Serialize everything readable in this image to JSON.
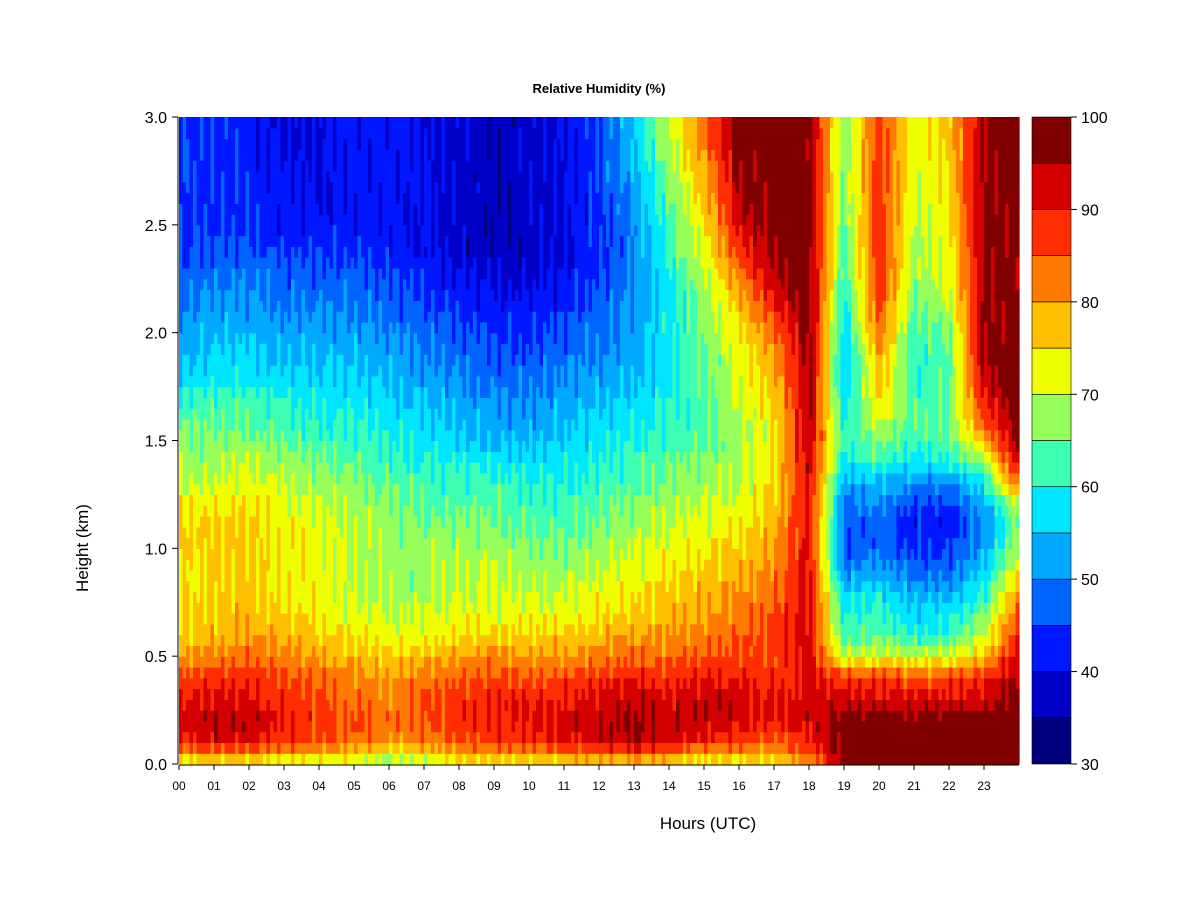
{
  "chart_data": {
    "type": "heatmap",
    "title": "Relative Humidity (%)",
    "xlabel": "Hours (UTC)",
    "ylabel": "Height (km)",
    "x_ticks": [
      "00",
      "01",
      "02",
      "03",
      "04",
      "05",
      "06",
      "07",
      "08",
      "09",
      "10",
      "11",
      "12",
      "13",
      "14",
      "15",
      "16",
      "17",
      "18",
      "19",
      "20",
      "21",
      "22",
      "23"
    ],
    "xlim": [
      0,
      24
    ],
    "y_ticks": [
      "0.0",
      "0.5",
      "1.0",
      "1.5",
      "2.0",
      "2.5",
      "3.0"
    ],
    "y_tick_values": [
      0,
      0.5,
      1.0,
      1.5,
      2.0,
      2.5,
      3.0
    ],
    "ylim": [
      0,
      3.0
    ],
    "colorbar": {
      "levels": [
        30,
        35,
        40,
        45,
        50,
        55,
        60,
        65,
        70,
        75,
        80,
        85,
        90,
        95,
        100
      ],
      "tick_labels": [
        "30",
        "40",
        "50",
        "60",
        "70",
        "80",
        "90",
        "100"
      ],
      "tick_values": [
        30,
        40,
        50,
        60,
        70,
        80,
        90,
        100
      ],
      "colors": [
        "#00007f",
        "#0000c8",
        "#0018ff",
        "#0064ff",
        "#00a8ff",
        "#00e6ff",
        "#3cffb4",
        "#96ff5a",
        "#f0ff00",
        "#ffbe00",
        "#ff7a00",
        "#ff2e00",
        "#d40000",
        "#800000"
      ]
    },
    "heights_km": [
      0.0,
      0.1,
      0.2,
      0.3,
      0.4,
      0.5,
      0.6,
      0.7,
      0.8,
      0.9,
      1.0,
      1.1,
      1.2,
      1.3,
      1.4,
      1.5,
      1.6,
      1.7,
      1.8,
      1.9,
      2.0,
      2.1,
      2.2,
      2.3,
      2.4,
      2.5,
      2.6,
      2.7,
      2.8,
      2.9,
      3.0
    ],
    "hours_utc": [
      0,
      1,
      2,
      3,
      4,
      5,
      6,
      7,
      8,
      9,
      10,
      11,
      12,
      13,
      14,
      15,
      16,
      17,
      18,
      19,
      20,
      21,
      22,
      23,
      24
    ],
    "rh_percent_by_height": [
      [
        70,
        72,
        72,
        70,
        70,
        68,
        66,
        68,
        72,
        72,
        72,
        73,
        75,
        75,
        72,
        70,
        72,
        74,
        78,
        98,
        98,
        98,
        98,
        98,
        98
      ],
      [
        90,
        92,
        92,
        88,
        86,
        84,
        80,
        82,
        86,
        88,
        88,
        90,
        92,
        94,
        92,
        88,
        86,
        84,
        90,
        98,
        98,
        98,
        98,
        98,
        98
      ],
      [
        92,
        94,
        94,
        90,
        88,
        86,
        84,
        86,
        88,
        90,
        90,
        92,
        94,
        96,
        94,
        94,
        92,
        90,
        92,
        99,
        99,
        99,
        99,
        99,
        99
      ],
      [
        90,
        92,
        92,
        88,
        86,
        84,
        82,
        86,
        88,
        90,
        90,
        90,
        92,
        94,
        92,
        94,
        92,
        90,
        92,
        92,
        92,
        92,
        92,
        92,
        98
      ],
      [
        86,
        88,
        88,
        86,
        84,
        82,
        80,
        82,
        84,
        86,
        86,
        86,
        88,
        90,
        88,
        90,
        90,
        88,
        92,
        88,
        88,
        86,
        86,
        88,
        96
      ],
      [
        80,
        82,
        84,
        82,
        80,
        78,
        76,
        78,
        80,
        82,
        80,
        80,
        82,
        84,
        84,
        86,
        86,
        86,
        92,
        70,
        72,
        70,
        72,
        76,
        94
      ],
      [
        76,
        78,
        80,
        78,
        76,
        74,
        72,
        72,
        74,
        76,
        76,
        76,
        78,
        80,
        80,
        82,
        84,
        86,
        92,
        62,
        64,
        60,
        62,
        70,
        88
      ],
      [
        74,
        76,
        78,
        76,
        74,
        72,
        70,
        70,
        72,
        72,
        72,
        72,
        74,
        76,
        78,
        80,
        82,
        86,
        92,
        60,
        62,
        56,
        58,
        66,
        84
      ],
      [
        74,
        76,
        76,
        74,
        72,
        70,
        68,
        68,
        70,
        70,
        70,
        70,
        72,
        74,
        76,
        78,
        80,
        84,
        92,
        56,
        58,
        52,
        52,
        60,
        80
      ],
      [
        74,
        76,
        76,
        74,
        72,
        70,
        68,
        68,
        70,
        70,
        68,
        68,
        70,
        72,
        74,
        76,
        78,
        82,
        92,
        50,
        52,
        48,
        48,
        56,
        74
      ],
      [
        76,
        76,
        76,
        74,
        72,
        70,
        68,
        68,
        68,
        68,
        66,
        66,
        68,
        70,
        72,
        74,
        76,
        80,
        92,
        46,
        48,
        44,
        44,
        52,
        70
      ],
      [
        76,
        76,
        76,
        74,
        72,
        70,
        68,
        66,
        66,
        66,
        64,
        64,
        66,
        68,
        70,
        72,
        74,
        78,
        92,
        46,
        48,
        42,
        42,
        50,
        68
      ],
      [
        74,
        74,
        74,
        72,
        70,
        68,
        66,
        64,
        64,
        64,
        62,
        62,
        64,
        66,
        68,
        70,
        72,
        76,
        92,
        48,
        50,
        44,
        44,
        52,
        70
      ],
      [
        70,
        70,
        72,
        70,
        68,
        66,
        64,
        62,
        62,
        62,
        60,
        60,
        62,
        64,
        66,
        68,
        70,
        76,
        92,
        52,
        54,
        50,
        50,
        58,
        84
      ],
      [
        68,
        68,
        70,
        68,
        66,
        64,
        62,
        60,
        60,
        58,
        58,
        58,
        60,
        62,
        64,
        66,
        68,
        74,
        94,
        58,
        62,
        58,
        60,
        68,
        94
      ],
      [
        66,
        66,
        66,
        64,
        62,
        62,
        60,
        58,
        56,
        54,
        54,
        56,
        58,
        60,
        62,
        64,
        68,
        74,
        94,
        62,
        66,
        62,
        64,
        78,
        98
      ],
      [
        64,
        64,
        64,
        62,
        60,
        60,
        58,
        56,
        54,
        52,
        52,
        54,
        56,
        58,
        60,
        64,
        68,
        74,
        95,
        60,
        72,
        64,
        66,
        86,
        98
      ],
      [
        60,
        62,
        62,
        60,
        58,
        58,
        56,
        54,
        52,
        50,
        50,
        52,
        54,
        56,
        60,
        64,
        70,
        76,
        96,
        56,
        76,
        62,
        66,
        90,
        98
      ],
      [
        56,
        58,
        58,
        56,
        56,
        56,
        54,
        52,
        50,
        48,
        48,
        50,
        52,
        54,
        58,
        64,
        70,
        78,
        96,
        54,
        78,
        60,
        64,
        94,
        98
      ],
      [
        54,
        56,
        56,
        54,
        54,
        54,
        52,
        50,
        48,
        46,
        46,
        48,
        50,
        52,
        58,
        64,
        72,
        80,
        97,
        54,
        80,
        60,
        64,
        96,
        98
      ],
      [
        52,
        54,
        54,
        52,
        52,
        52,
        50,
        48,
        46,
        44,
        44,
        46,
        48,
        52,
        58,
        66,
        74,
        84,
        97,
        56,
        84,
        62,
        66,
        96,
        98
      ],
      [
        50,
        52,
        52,
        50,
        50,
        50,
        48,
        46,
        44,
        42,
        42,
        44,
        48,
        52,
        58,
        66,
        76,
        88,
        98,
        58,
        86,
        64,
        68,
        96,
        98
      ],
      [
        48,
        50,
        50,
        48,
        48,
        48,
        46,
        44,
        42,
        40,
        40,
        42,
        46,
        50,
        58,
        68,
        80,
        92,
        98,
        60,
        88,
        66,
        70,
        96,
        98
      ],
      [
        46,
        48,
        48,
        46,
        46,
        46,
        44,
        42,
        40,
        38,
        38,
        40,
        44,
        50,
        60,
        70,
        84,
        96,
        98,
        62,
        88,
        68,
        72,
        96,
        98
      ],
      [
        44,
        46,
        46,
        44,
        44,
        44,
        42,
        40,
        38,
        36,
        38,
        40,
        44,
        50,
        62,
        72,
        88,
        98,
        98,
        62,
        88,
        68,
        72,
        96,
        98
      ],
      [
        44,
        44,
        44,
        42,
        42,
        42,
        42,
        40,
        38,
        36,
        38,
        40,
        44,
        50,
        62,
        74,
        92,
        98,
        98,
        64,
        88,
        70,
        74,
        96,
        98
      ],
      [
        44,
        44,
        44,
        42,
        40,
        42,
        42,
        40,
        38,
        36,
        38,
        40,
        44,
        52,
        64,
        76,
        94,
        98,
        98,
        64,
        88,
        70,
        74,
        96,
        98
      ],
      [
        44,
        44,
        44,
        42,
        40,
        42,
        42,
        40,
        38,
        36,
        38,
        40,
        46,
        52,
        66,
        78,
        96,
        98,
        98,
        66,
        88,
        72,
        76,
        96,
        98
      ],
      [
        44,
        44,
        42,
        40,
        40,
        42,
        42,
        40,
        38,
        36,
        38,
        40,
        46,
        54,
        68,
        80,
        96,
        98,
        98,
        66,
        88,
        72,
        76,
        96,
        98
      ],
      [
        44,
        44,
        42,
        40,
        40,
        42,
        42,
        40,
        38,
        36,
        38,
        40,
        46,
        54,
        70,
        82,
        98,
        98,
        98,
        66,
        88,
        72,
        76,
        96,
        98
      ],
      [
        44,
        44,
        42,
        40,
        40,
        42,
        42,
        40,
        38,
        36,
        38,
        40,
        46,
        56,
        70,
        84,
        98,
        98,
        98,
        66,
        88,
        72,
        76,
        96,
        98
      ]
    ]
  }
}
